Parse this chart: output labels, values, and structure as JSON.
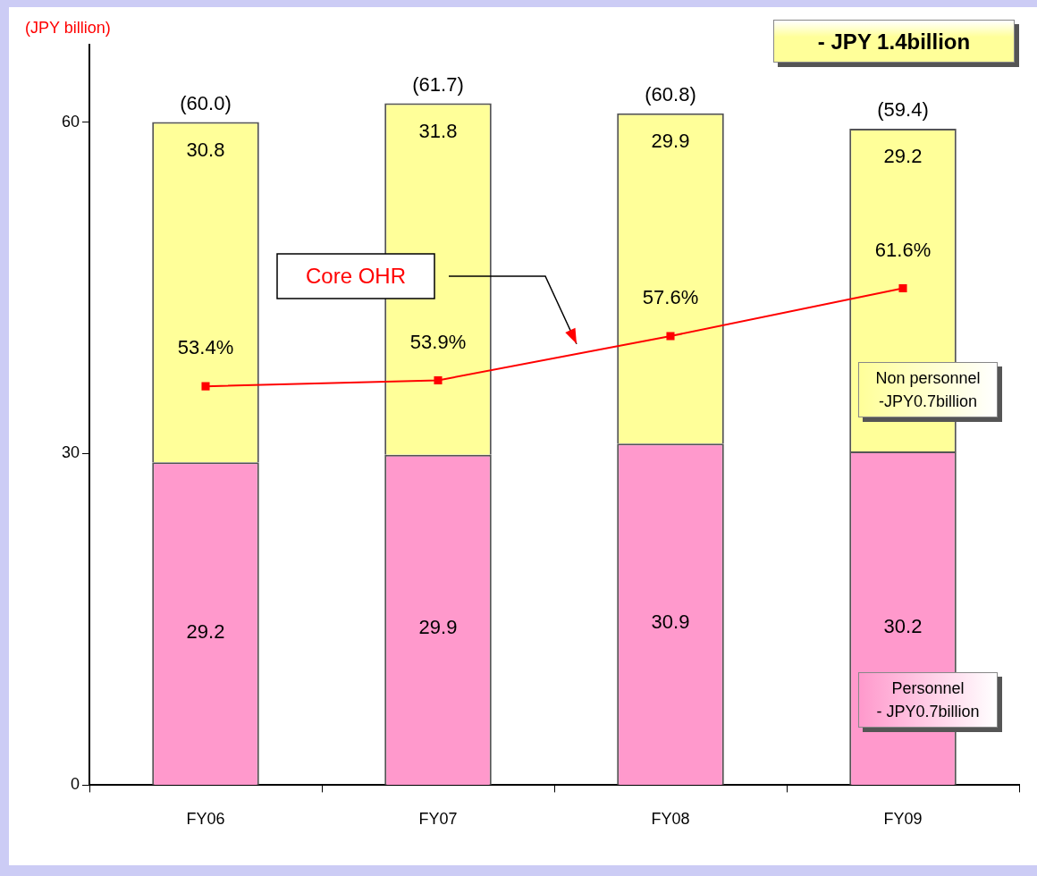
{
  "chart_data": {
    "type": "bar",
    "stacked": true,
    "ylabel": "(JPY billion)",
    "categories": [
      "FY06",
      "FY07",
      "FY08",
      "FY09"
    ],
    "series": [
      {
        "name": "Personnel",
        "color": "#ff99cc",
        "values": [
          29.2,
          29.9,
          30.9,
          30.2
        ]
      },
      {
        "name": "Non personnel",
        "color": "#ffff99",
        "values": [
          30.8,
          31.8,
          29.9,
          29.2
        ]
      },
      {
        "name": "Core OHR",
        "type": "line",
        "axis": "y2",
        "color": "#ff0000",
        "values": [
          53.4,
          53.9,
          57.6,
          61.6
        ],
        "value_labels": [
          "53.4%",
          "53.9%",
          "57.6%",
          "61.6%"
        ]
      }
    ],
    "ylim": [
      0,
      67
    ],
    "yticks": [
      0,
      30,
      60
    ],
    "y2lim": [
      20,
      82
    ],
    "totals": [
      "(60.0)",
      "(61.7)",
      "(60.8)",
      "(59.4)"
    ],
    "data_labels": true,
    "legend": false,
    "grid": false,
    "marker": "square",
    "line_style": "solid",
    "annotations": [
      "- JPY 1.4billion",
      "- JPY0.7billion",
      "-JPY0.7billion"
    ]
  }
}
